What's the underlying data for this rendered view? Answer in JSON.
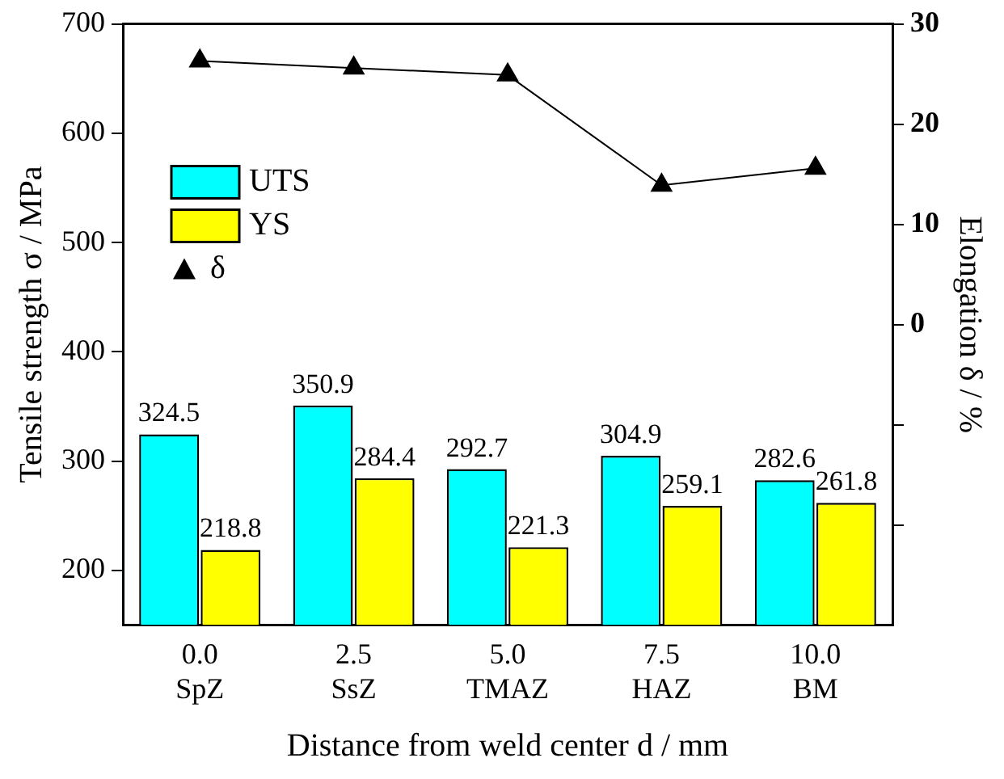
{
  "chart_data": {
    "type": "bar",
    "xlabel": "Distance from weld center d / mm",
    "ylabel": "Tensile strength σ / MPa",
    "y2label": "Elongation δ / %",
    "categories": [
      "0.0\nSpZ",
      "2.5\nSsZ",
      "5.0\nTMAZ",
      "7.5\nHAZ",
      "10.0\nBM"
    ],
    "series": [
      {
        "name": "UTS",
        "color": "#00ffff",
        "values": [
          324.5,
          350.9,
          292.7,
          304.9,
          282.6
        ],
        "value_labels": [
          "324.5",
          "350.9",
          "292.7",
          "304.9",
          "282.6"
        ]
      },
      {
        "name": "YS",
        "color": "#ffff00",
        "values": [
          218.8,
          284.4,
          221.3,
          259.1,
          261.8
        ],
        "value_labels": [
          "218.8",
          "284.4",
          "221.3",
          "259.1",
          "261.8"
        ]
      },
      {
        "name": "δ",
        "type": "line",
        "axis": "y2",
        "color": "#000000",
        "marker": "triangle",
        "values": [
          26.3,
          25.6,
          24.9,
          13.9,
          15.6
        ]
      }
    ],
    "ylim": [
      150,
      700
    ],
    "yticks": [
      200,
      300,
      400,
      500,
      600,
      700
    ],
    "y2lim": [
      -30,
      30
    ],
    "y2ticks": [
      {
        "value": -20,
        "label": null
      },
      {
        "value": -10,
        "label": null
      },
      0,
      10,
      20,
      30
    ],
    "grid": false,
    "legend": "top left"
  }
}
